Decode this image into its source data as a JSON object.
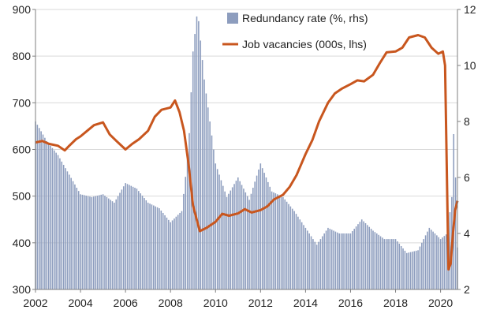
{
  "colors": {
    "bars": "#8d9dbe",
    "line": "#c8561e",
    "axis": "#7f7f7f",
    "grid": "#d9d9d9",
    "background": "#ffffff"
  },
  "chart_data": {
    "type": "bar+line",
    "title": "",
    "xlabel": "",
    "ylabel_left": "",
    "ylabel_right": "",
    "x_ticks": [
      "2002",
      "2004",
      "2006",
      "2008",
      "2010",
      "2012",
      "2014",
      "2016",
      "2018",
      "2020"
    ],
    "y_left_ticks": [
      "300",
      "400",
      "500",
      "600",
      "700",
      "800",
      "900"
    ],
    "y_right_ticks": [
      "2",
      "4",
      "6",
      "8",
      "10",
      "12"
    ],
    "y_left_range": [
      300,
      900
    ],
    "y_right_range": [
      2,
      12
    ],
    "x_range": [
      2002.0,
      2020.75
    ],
    "grid": "horizontal",
    "legend_position": "top-center",
    "legend": [
      {
        "label": "Redundancy rate (%, rhs)",
        "kind": "bar"
      },
      {
        "label": "Job vacancies (000s, lhs)",
        "kind": "line"
      }
    ],
    "series": [
      {
        "name": "Redundancy rate (%, rhs)",
        "axis": "right",
        "kind": "bar",
        "frequency": "monthly",
        "points": [
          [
            2002.0,
            8.0
          ],
          [
            2002.5,
            7.3
          ],
          [
            2003.0,
            6.8
          ],
          [
            2003.5,
            6.1
          ],
          [
            2004.0,
            5.4
          ],
          [
            2004.5,
            5.3
          ],
          [
            2005.0,
            5.4
          ],
          [
            2005.5,
            5.1
          ],
          [
            2006.0,
            5.8
          ],
          [
            2006.5,
            5.6
          ],
          [
            2007.0,
            5.1
          ],
          [
            2007.5,
            4.9
          ],
          [
            2008.0,
            4.4
          ],
          [
            2008.5,
            4.8
          ],
          [
            2008.8,
            7.0
          ],
          [
            2009.0,
            10.5
          ],
          [
            2009.2,
            12.0
          ],
          [
            2009.5,
            9.5
          ],
          [
            2010.0,
            6.5
          ],
          [
            2010.5,
            5.3
          ],
          [
            2011.0,
            6.0
          ],
          [
            2011.5,
            5.2
          ],
          [
            2012.0,
            6.5
          ],
          [
            2012.5,
            5.5
          ],
          [
            2013.0,
            5.3
          ],
          [
            2013.5,
            4.8
          ],
          [
            2014.0,
            4.2
          ],
          [
            2014.5,
            3.6
          ],
          [
            2015.0,
            4.2
          ],
          [
            2015.5,
            4.0
          ],
          [
            2016.0,
            4.0
          ],
          [
            2016.5,
            4.5
          ],
          [
            2017.0,
            4.1
          ],
          [
            2017.5,
            3.8
          ],
          [
            2018.0,
            3.8
          ],
          [
            2018.5,
            3.3
          ],
          [
            2019.0,
            3.4
          ],
          [
            2019.5,
            4.2
          ],
          [
            2020.0,
            3.8
          ],
          [
            2020.3,
            4.0
          ],
          [
            2020.5,
            5.3
          ],
          [
            2020.6,
            8.0
          ],
          [
            2020.75,
            3.5
          ]
        ]
      },
      {
        "name": "Job vacancies (000s, lhs)",
        "axis": "left",
        "kind": "line",
        "frequency": "monthly",
        "points": [
          [
            2002.0,
            615
          ],
          [
            2002.3,
            618
          ],
          [
            2002.6,
            612
          ],
          [
            2003.0,
            608
          ],
          [
            2003.3,
            598
          ],
          [
            2003.5,
            608
          ],
          [
            2003.8,
            622
          ],
          [
            2004.0,
            628
          ],
          [
            2004.3,
            640
          ],
          [
            2004.6,
            652
          ],
          [
            2005.0,
            658
          ],
          [
            2005.3,
            632
          ],
          [
            2005.6,
            618
          ],
          [
            2006.0,
            600
          ],
          [
            2006.3,
            612
          ],
          [
            2006.6,
            622
          ],
          [
            2007.0,
            640
          ],
          [
            2007.3,
            670
          ],
          [
            2007.6,
            685
          ],
          [
            2008.0,
            690
          ],
          [
            2008.2,
            705
          ],
          [
            2008.4,
            680
          ],
          [
            2008.6,
            640
          ],
          [
            2008.8,
            570
          ],
          [
            2009.0,
            480
          ],
          [
            2009.3,
            425
          ],
          [
            2009.6,
            432
          ],
          [
            2010.0,
            445
          ],
          [
            2010.3,
            462
          ],
          [
            2010.6,
            458
          ],
          [
            2011.0,
            463
          ],
          [
            2011.3,
            472
          ],
          [
            2011.6,
            465
          ],
          [
            2012.0,
            470
          ],
          [
            2012.3,
            478
          ],
          [
            2012.6,
            493
          ],
          [
            2013.0,
            503
          ],
          [
            2013.3,
            520
          ],
          [
            2013.6,
            545
          ],
          [
            2014.0,
            590
          ],
          [
            2014.3,
            620
          ],
          [
            2014.6,
            660
          ],
          [
            2015.0,
            700
          ],
          [
            2015.3,
            720
          ],
          [
            2015.6,
            730
          ],
          [
            2016.0,
            740
          ],
          [
            2016.3,
            748
          ],
          [
            2016.6,
            746
          ],
          [
            2017.0,
            760
          ],
          [
            2017.3,
            785
          ],
          [
            2017.6,
            808
          ],
          [
            2018.0,
            810
          ],
          [
            2018.3,
            818
          ],
          [
            2018.6,
            840
          ],
          [
            2019.0,
            845
          ],
          [
            2019.3,
            840
          ],
          [
            2019.6,
            818
          ],
          [
            2019.9,
            805
          ],
          [
            2020.1,
            810
          ],
          [
            2020.2,
            780
          ],
          [
            2020.35,
            343
          ],
          [
            2020.45,
            355
          ],
          [
            2020.55,
            420
          ],
          [
            2020.65,
            470
          ],
          [
            2020.75,
            490
          ]
        ]
      }
    ]
  }
}
